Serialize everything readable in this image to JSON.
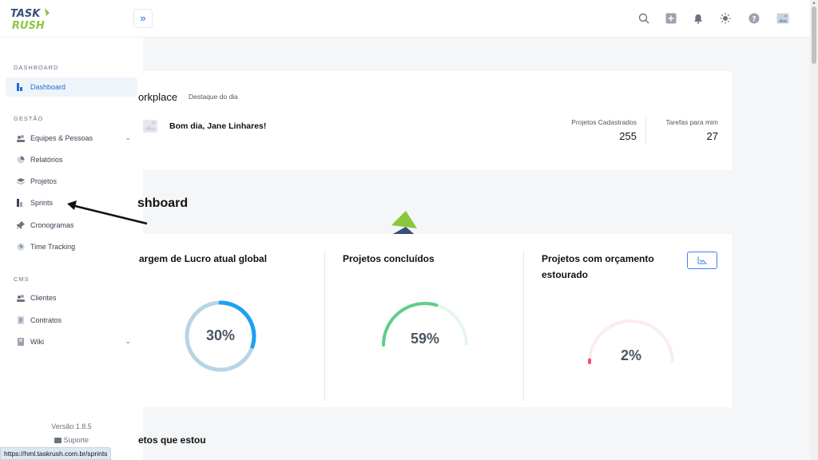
{
  "brand": {
    "logo_line1": "TASK",
    "logo_line2": "RUSH"
  },
  "topbar": {
    "expand_label": "»",
    "icons": [
      "search-icon",
      "plus-icon",
      "bell-icon",
      "sun-icon",
      "help-icon",
      "avatar-icon"
    ]
  },
  "sidebar": {
    "section_dashboard": "DASHBOARD",
    "section_gestao": "GESTÃO",
    "section_cms": "CMS",
    "items": [
      {
        "label": "Dashboard",
        "icon": "dashboard-icon"
      },
      {
        "label": "Equipes & Pessoas",
        "icon": "people-icon"
      },
      {
        "label": "Relatórios",
        "icon": "pie-chart-icon"
      },
      {
        "label": "Projetos",
        "icon": "stack-icon"
      },
      {
        "label": "Sprints",
        "icon": "sprints-icon"
      },
      {
        "label": "Cronogramas",
        "icon": "pin-icon"
      },
      {
        "label": "Time Tracking",
        "icon": "clock-icon"
      },
      {
        "label": "Clientes",
        "icon": "people-icon"
      },
      {
        "label": "Contratos",
        "icon": "document-icon"
      },
      {
        "label": "Wiki",
        "icon": "book-icon"
      }
    ],
    "version": "Versão 1.8.5",
    "support": "Suporte"
  },
  "status_url": "https://hml.taskrush.com.br/sprints",
  "workplace": {
    "title": "orkplace",
    "subtitle": "Destaque do dia",
    "greeting": "Bom dia, Jane Linhares!",
    "stats": [
      {
        "label": "Projetos Cadastrados",
        "value": "255"
      },
      {
        "label": "Tarefas para mim",
        "value": "27"
      }
    ]
  },
  "dashboard": {
    "title": "shboard",
    "kpis": [
      {
        "title": "argem de Lucro atual global",
        "value_text": "30%",
        "value": 30,
        "color": "#1da1f2",
        "track": "#b9d4e4"
      },
      {
        "title": "Projetos concluídos",
        "value_text": "59%",
        "value": 59,
        "color": "#5ccf8a",
        "track": "#e6f6ee"
      },
      {
        "title": "Projetos com orçamento estourado",
        "value_text": "2%",
        "value": 2,
        "color": "#f0506e",
        "track": "#fbecef"
      }
    ]
  },
  "bottom_title": "etos que estou",
  "colors": {
    "accent": "#1d6fd1",
    "logo_green": "#8cc63f",
    "logo_navy": "#3a4f7a"
  }
}
